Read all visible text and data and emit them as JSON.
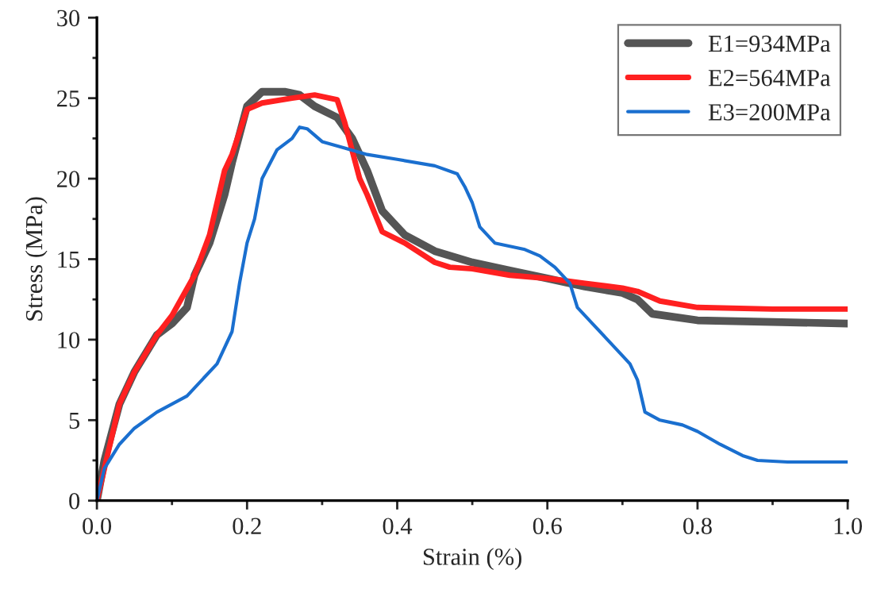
{
  "chart_data": {
    "type": "line",
    "xlabel": "Strain (%)",
    "ylabel": "Stress (MPa)",
    "xlim": [
      0,
      1.0
    ],
    "ylim": [
      0,
      30
    ],
    "xticks": [
      {
        "value": 0,
        "label": "0.0"
      },
      0.2,
      0.4,
      0.6,
      0.8,
      {
        "value": 1.0,
        "label": "1.0"
      }
    ],
    "yticks": [
      0,
      5,
      10,
      15,
      20,
      25,
      30
    ],
    "grid": false,
    "legend": "top right",
    "marker": "none",
    "line_style": "solid",
    "series": [
      {
        "name": "E1=934MPa",
        "color": "#555555",
        "x": [
          0,
          0.01,
          0.03,
          0.05,
          0.08,
          0.1,
          0.12,
          0.13,
          0.15,
          0.17,
          0.18,
          0.2,
          0.22,
          0.25,
          0.27,
          0.29,
          0.32,
          0.34,
          0.36,
          0.38,
          0.41,
          0.45,
          0.5,
          0.55,
          0.6,
          0.65,
          0.7,
          0.72,
          0.74,
          0.8,
          0.9,
          1.0
        ],
        "values": [
          0,
          2.5,
          6,
          8,
          10.3,
          11,
          12,
          14,
          16,
          19,
          21,
          24.5,
          25.4,
          25.4,
          25.2,
          24.5,
          23.8,
          22.5,
          20.5,
          18,
          16.5,
          15.5,
          14.8,
          14.3,
          13.8,
          13.3,
          12.9,
          12.5,
          11.6,
          11.2,
          11.1,
          11.0
        ]
      },
      {
        "name": "E2=564MPa",
        "color": "#ff2020",
        "x": [
          0,
          0.03,
          0.05,
          0.08,
          0.1,
          0.13,
          0.15,
          0.17,
          0.18,
          0.2,
          0.22,
          0.26,
          0.29,
          0.3,
          0.32,
          0.33,
          0.35,
          0.36,
          0.38,
          0.41,
          0.45,
          0.47,
          0.5,
          0.55,
          0.6,
          0.65,
          0.7,
          0.72,
          0.75,
          0.8,
          0.9,
          1.0
        ],
        "values": [
          0,
          6,
          8,
          10.3,
          11.5,
          14,
          16.5,
          20.5,
          21.5,
          24.3,
          24.7,
          25,
          25.2,
          25.1,
          24.9,
          23.5,
          20,
          19,
          16.7,
          16,
          14.8,
          14.5,
          14.4,
          14.0,
          13.8,
          13.5,
          13.2,
          13.0,
          12.4,
          12.0,
          11.9,
          11.9
        ]
      },
      {
        "name": "E3=200MPa",
        "color": "#1a6fcf",
        "x": [
          0,
          0.01,
          0.03,
          0.05,
          0.08,
          0.12,
          0.14,
          0.16,
          0.18,
          0.19,
          0.2,
          0.21,
          0.22,
          0.24,
          0.26,
          0.27,
          0.28,
          0.3,
          0.33,
          0.36,
          0.4,
          0.45,
          0.48,
          0.49,
          0.5,
          0.51,
          0.53,
          0.57,
          0.59,
          0.61,
          0.63,
          0.64,
          0.66,
          0.68,
          0.7,
          0.71,
          0.72,
          0.73,
          0.75,
          0.78,
          0.8,
          0.83,
          0.86,
          0.88,
          0.92,
          1.0
        ],
        "values": [
          0,
          2,
          3.5,
          4.5,
          5.5,
          6.5,
          7.5,
          8.5,
          10.5,
          13.5,
          16,
          17.5,
          20,
          21.8,
          22.5,
          23.2,
          23.1,
          22.3,
          21.9,
          21.5,
          21.2,
          20.8,
          20.3,
          19.5,
          18.5,
          17,
          16,
          15.6,
          15.2,
          14.5,
          13.5,
          12,
          11,
          10,
          9,
          8.5,
          7.5,
          5.5,
          5,
          4.7,
          4.3,
          3.5,
          2.8,
          2.5,
          2.4,
          2.4
        ]
      }
    ]
  }
}
